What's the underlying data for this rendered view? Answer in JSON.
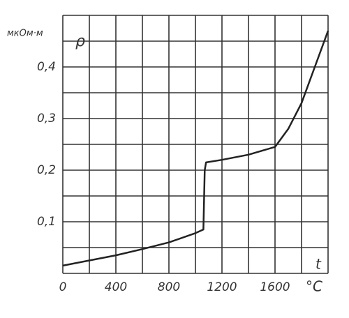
{
  "chart_data": {
    "type": "line",
    "y_unit": "мкОм·м",
    "y_label": "ρ",
    "x_label": "t",
    "x_unit": "°C",
    "xlim": [
      0,
      2000
    ],
    "ylim": [
      0,
      0.5
    ],
    "xticks": [
      0,
      400,
      800,
      1200,
      1600
    ],
    "yticks": [
      {
        "value": 0.1,
        "label": "0,1"
      },
      {
        "value": 0.2,
        "label": "0,2"
      },
      {
        "value": 0.3,
        "label": "0,3"
      },
      {
        "value": 0.4,
        "label": "0,4"
      }
    ],
    "xgrid": [
      0,
      200,
      400,
      600,
      800,
      1000,
      1200,
      1400,
      1600,
      1800,
      2000
    ],
    "ygrid": [
      0,
      0.05,
      0.1,
      0.15,
      0.2,
      0.25,
      0.3,
      0.35,
      0.4,
      0.45,
      0.5
    ],
    "x": [
      0,
      200,
      400,
      600,
      800,
      1000,
      1060,
      1070,
      1080,
      1200,
      1400,
      1600,
      1700,
      1800,
      1900,
      2000
    ],
    "series": [
      {
        "color": "#222222",
        "values": [
          0.015,
          0.025,
          0.035,
          0.047,
          0.06,
          0.078,
          0.085,
          0.2,
          0.215,
          0.22,
          0.23,
          0.245,
          0.28,
          0.33,
          0.4,
          0.47
        ]
      }
    ]
  }
}
